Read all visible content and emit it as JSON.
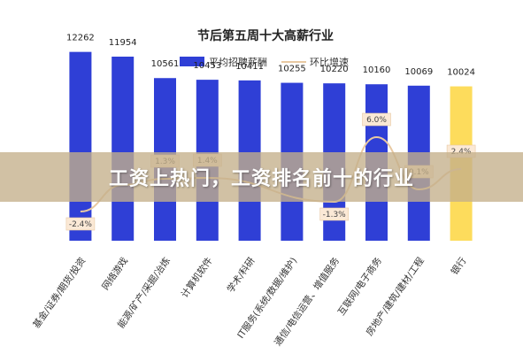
{
  "chart_data": {
    "type": "bar",
    "title": "节后第五周十大高薪行业",
    "legend": [
      {
        "name": "平均招聘薪酬",
        "kind": "bar"
      },
      {
        "name": "环比增速",
        "kind": "line"
      }
    ],
    "categories": [
      "基金/证券/期货/投资",
      "网络游戏",
      "能源/矿产/采掘/冶炼",
      "计算机软件",
      "学术/科研",
      "IT服务(系统/数据/维护)",
      "通信/电信运营、增值服务",
      "互联网/电子商务",
      "房地产/建筑/建材/工程",
      "银行"
    ],
    "series": [
      {
        "name": "平均招聘薪酬",
        "type": "bar",
        "values": [
          12262,
          11954,
          10561,
          10453,
          10411,
          10255,
          10220,
          10160,
          10069,
          10024
        ],
        "value_labels": [
          "12262",
          "11954",
          "10561",
          "10453",
          "10411",
          "10255",
          "10220",
          "10160",
          "10069",
          "10024"
        ]
      },
      {
        "name": "环比增速",
        "type": "line",
        "values": [
          -2.4,
          0.6,
          1.3,
          1.4,
          null,
          null,
          -1.3,
          6.0,
          0.1,
          2.4
        ],
        "value_labels": [
          "-2.4%",
          "",
          "1.3%",
          "1.4%",
          "",
          "",
          "-1.3%",
          "6.0%",
          "0.1%",
          "2.4%"
        ]
      }
    ],
    "highlight_index": 9,
    "bar_color": "#2f3fd6",
    "highlight_color": "#fddc5c",
    "line_color": "#e8c9a2",
    "ylim": [
      0,
      14000
    ],
    "grid": false,
    "legend_position": "top-center"
  },
  "banner": {
    "text": "工资上热门，工资排名前十的行业"
  }
}
